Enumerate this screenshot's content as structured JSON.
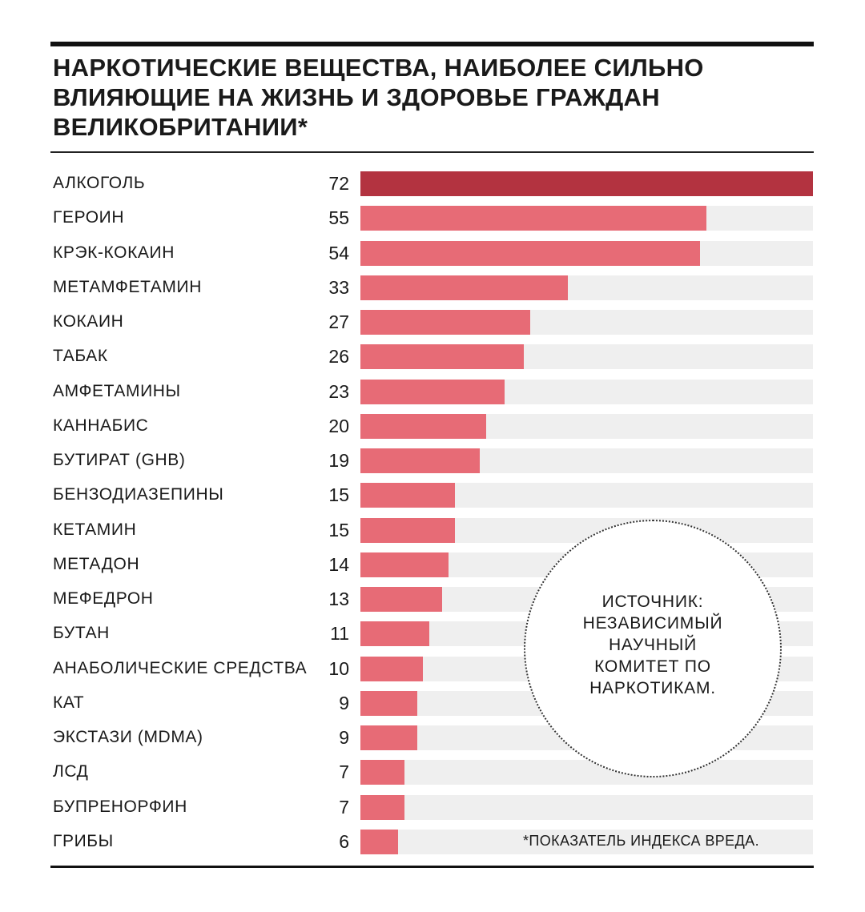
{
  "chart_data": {
    "type": "bar",
    "orientation": "horizontal",
    "title": "НАРКОТИЧЕСКИЕ ВЕЩЕСТВА, НАИБОЛЕЕ СИЛЬНО ВЛИЯЮЩИЕ НА ЖИЗНЬ И ЗДОРОВЬЕ ГРАЖДАН ВЕЛИКОБРИТАНИИ*",
    "categories": [
      "АЛКОГОЛЬ",
      "ГЕРОИН",
      "КРЭК-КОКАИН",
      "МЕТАМФЕТАМИН",
      "КОКАИН",
      "ТАБАК",
      "АМФЕТАМИНЫ",
      "КАННАБИС",
      "БУТИРАТ (GHB)",
      "БЕНЗОДИАЗЕПИНЫ",
      "КЕТАМИН",
      "МЕТАДОН",
      "МЕФЕДРОН",
      "БУТАН",
      "АНАБОЛИЧЕСКИЕ СРЕДСТВА",
      "КАТ",
      "ЭКСТАЗИ (MDMA)",
      "ЛСД",
      "БУПРЕНОРФИН",
      "ГРИБЫ"
    ],
    "values": [
      72,
      55,
      54,
      33,
      27,
      26,
      23,
      20,
      19,
      15,
      15,
      14,
      13,
      11,
      10,
      9,
      9,
      7,
      7,
      6
    ],
    "xlim": [
      0,
      72
    ],
    "grid": false,
    "colors": {
      "highlight": "#b33340",
      "bar": "#e76b76",
      "track": "#efefef"
    },
    "source_note": "ИСТОЧНИК: НЕЗАВИСИМЫЙ НАУЧНЫЙ КОМИТЕТ ПО НАРКОТИКАМ.",
    "footnote": "*ПОКАЗАТЕЛЬ ИНДЕКСА ВРЕДА."
  }
}
